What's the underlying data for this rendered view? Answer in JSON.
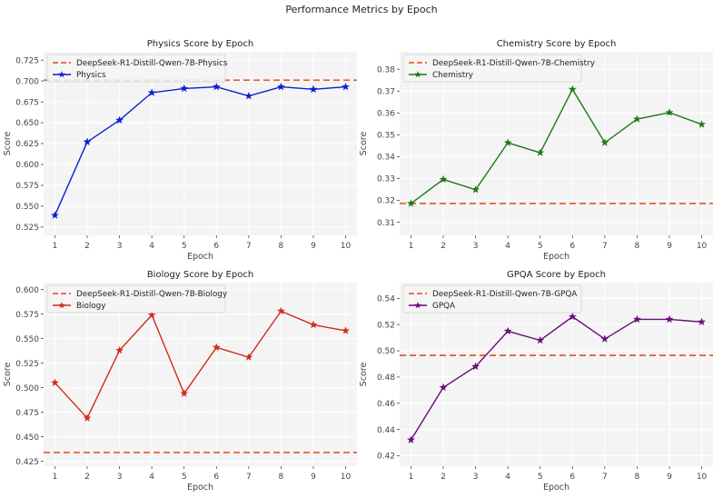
{
  "figure": {
    "suptitle": "Performance Metrics by Epoch"
  },
  "chart_data": [
    {
      "type": "line",
      "title": "Physics Score by Epoch",
      "xlabel": "Epoch",
      "ylabel": "Score",
      "x": [
        1,
        2,
        3,
        4,
        5,
        6,
        7,
        8,
        9,
        10
      ],
      "xlim": [
        0.65,
        10.35
      ],
      "ylim": [
        0.515,
        0.735
      ],
      "yticks": [
        0.525,
        0.55,
        0.575,
        0.6,
        0.625,
        0.65,
        0.675,
        0.7,
        0.725
      ],
      "ytick_labels": [
        "0.525",
        "0.550",
        "0.575",
        "0.600",
        "0.625",
        "0.650",
        "0.675",
        "0.700",
        "0.725"
      ],
      "grid": true,
      "legend_position": "top-left",
      "series": [
        {
          "name": "Physics",
          "color": "#0a1fd0",
          "marker": "star",
          "values": [
            0.539,
            0.627,
            0.653,
            0.686,
            0.691,
            0.693,
            0.682,
            0.693,
            0.69,
            0.693
          ]
        }
      ],
      "baseline": {
        "name": "DeepSeek-R1-Distill-Qwen-7B-Physics",
        "value": 0.701,
        "color": "#e2643a",
        "style": "dashed"
      }
    },
    {
      "type": "line",
      "title": "Chemistry Score by Epoch",
      "xlabel": "Epoch",
      "ylabel": "Score",
      "x": [
        1,
        2,
        3,
        4,
        5,
        6,
        7,
        8,
        9,
        10
      ],
      "xlim": [
        0.65,
        10.35
      ],
      "ylim": [
        0.304,
        0.388
      ],
      "yticks": [
        0.31,
        0.32,
        0.33,
        0.34,
        0.35,
        0.36,
        0.37,
        0.38
      ],
      "ytick_labels": [
        "0.31",
        "0.32",
        "0.33",
        "0.34",
        "0.35",
        "0.36",
        "0.37",
        "0.38"
      ],
      "grid": true,
      "legend_position": "top-left",
      "series": [
        {
          "name": "Chemistry",
          "color": "#1d7a17",
          "marker": "star",
          "values": [
            0.3186,
            0.3296,
            0.3249,
            0.3464,
            0.3418,
            0.3708,
            0.3464,
            0.3572,
            0.3602,
            0.3548
          ]
        }
      ],
      "baseline": {
        "name": "DeepSeek-R1-Distill-Qwen-7B-Chemistry",
        "value": 0.3186,
        "color": "#e2643a",
        "style": "dashed"
      }
    },
    {
      "type": "line",
      "title": "Biology Score by Epoch",
      "xlabel": "Epoch",
      "ylabel": "Score",
      "x": [
        1,
        2,
        3,
        4,
        5,
        6,
        7,
        8,
        9,
        10
      ],
      "xlim": [
        0.65,
        10.35
      ],
      "ylim": [
        0.42,
        0.607
      ],
      "yticks": [
        0.425,
        0.45,
        0.475,
        0.5,
        0.525,
        0.55,
        0.575,
        0.6
      ],
      "ytick_labels": [
        "0.425",
        "0.450",
        "0.475",
        "0.500",
        "0.525",
        "0.550",
        "0.575",
        "0.600"
      ],
      "grid": true,
      "legend_position": "top-left",
      "series": [
        {
          "name": "Biology",
          "color": "#d12a1e",
          "marker": "star",
          "values": [
            0.505,
            0.469,
            0.538,
            0.574,
            0.494,
            0.541,
            0.531,
            0.578,
            0.564,
            0.558
          ]
        }
      ],
      "baseline": {
        "name": "DeepSeek-R1-Distill-Qwen-7B-Biology",
        "value": 0.434,
        "color": "#e2643a",
        "style": "dashed"
      }
    },
    {
      "type": "line",
      "title": "GPQA Score by Epoch",
      "xlabel": "Epoch",
      "ylabel": "Score",
      "x": [
        1,
        2,
        3,
        4,
        5,
        6,
        7,
        8,
        9,
        10
      ],
      "xlim": [
        0.65,
        10.35
      ],
      "ylim": [
        0.412,
        0.552
      ],
      "yticks": [
        0.42,
        0.44,
        0.46,
        0.48,
        0.5,
        0.52,
        0.54
      ],
      "ytick_labels": [
        "0.42",
        "0.44",
        "0.46",
        "0.48",
        "0.50",
        "0.52",
        "0.54"
      ],
      "grid": true,
      "legend_position": "top-left",
      "series": [
        {
          "name": "GPQA",
          "color": "#6a0c7a",
          "marker": "star",
          "values": [
            0.432,
            0.472,
            0.488,
            0.515,
            0.508,
            0.526,
            0.509,
            0.524,
            0.524,
            0.522
          ]
        }
      ],
      "baseline": {
        "name": "DeepSeek-R1-Distill-Qwen-7B-GPQA",
        "value": 0.4965,
        "color": "#e2643a",
        "style": "dashed"
      }
    }
  ]
}
